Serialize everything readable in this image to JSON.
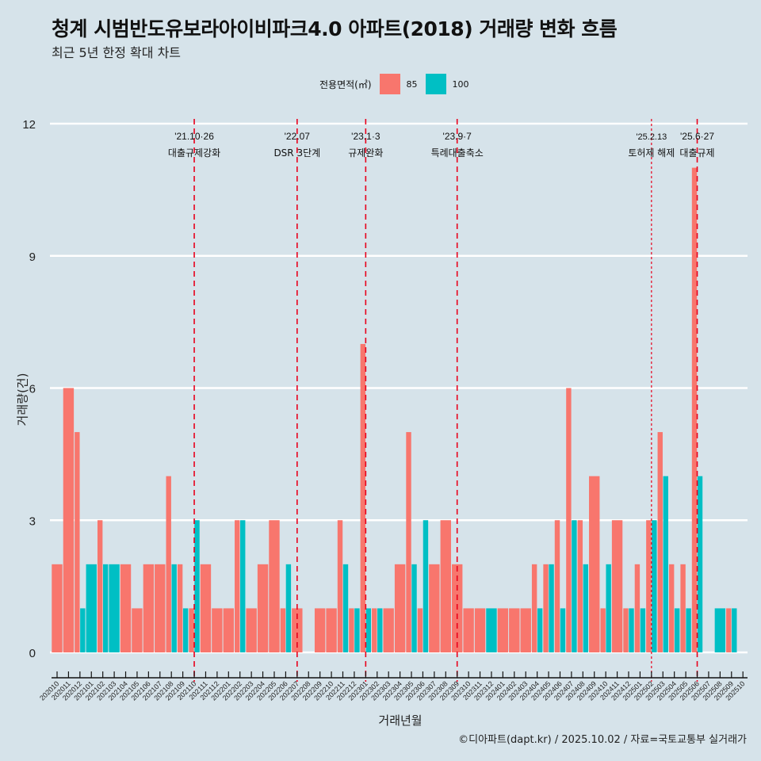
{
  "chart_data": {
    "type": "bar",
    "title": "청계 시범반도유보라아이비파크4.0 아파트(2018) 거래량 변화 흐름",
    "subtitle": "최근 5년 한정 확대 차트",
    "xlabel": "거래년월",
    "ylabel": "거래량(건)",
    "ylim": [
      0,
      12
    ],
    "yticks": [
      0,
      3,
      6,
      9,
      12
    ],
    "grid": true,
    "legend": {
      "title": "전용면적(㎡)",
      "position": "top"
    },
    "caption": "©디아파트(dapt.kr) / 2025.10.02 / 자료=국토교통부 실거래가",
    "categories": [
      "202010",
      "202011",
      "202012",
      "202101",
      "202102",
      "202103",
      "202104",
      "202105",
      "202106",
      "202107",
      "202108",
      "202109",
      "202110",
      "202111",
      "202112",
      "202201",
      "202202",
      "202203",
      "202204",
      "202205",
      "202206",
      "202207",
      "202208",
      "202209",
      "202210",
      "202211",
      "202212",
      "202301",
      "202302",
      "202303",
      "202304",
      "202305",
      "202306",
      "202307",
      "202308",
      "202309",
      "202310",
      "202311",
      "202312",
      "202401",
      "202402",
      "202403",
      "202404",
      "202405",
      "202406",
      "202407",
      "202408",
      "202409",
      "202410",
      "202411",
      "202412",
      "202501",
      "202502",
      "202503",
      "202504",
      "202505",
      "202506",
      "202507",
      "202508",
      "202509",
      "202510"
    ],
    "series": [
      {
        "name": "85",
        "color": "#f8766d",
        "values": [
          2,
          6,
          5,
          0,
          3,
          0,
          2,
          1,
          2,
          2,
          4,
          2,
          1,
          2,
          1,
          1,
          3,
          1,
          2,
          3,
          1,
          1,
          0,
          1,
          1,
          3,
          1,
          7,
          1,
          1,
          2,
          5,
          1,
          2,
          3,
          2,
          1,
          1,
          0,
          1,
          1,
          1,
          2,
          2,
          3,
          6,
          3,
          4,
          1,
          3,
          1,
          2,
          3,
          5,
          2,
          2,
          11,
          0,
          0,
          1,
          0
        ]
      },
      {
        "name": "100",
        "color": "#00bfc4",
        "values": [
          0,
          0,
          1,
          2,
          2,
          2,
          0,
          0,
          0,
          0,
          2,
          1,
          3,
          0,
          0,
          0,
          3,
          0,
          0,
          0,
          2,
          0,
          0,
          0,
          0,
          2,
          1,
          1,
          1,
          0,
          0,
          2,
          3,
          0,
          0,
          0,
          0,
          0,
          1,
          0,
          0,
          0,
          1,
          2,
          1,
          3,
          2,
          0,
          2,
          0,
          1,
          1,
          3,
          4,
          1,
          1,
          4,
          0,
          1,
          1,
          0
        ]
      }
    ],
    "events": [
      {
        "category": "202110",
        "date": "'21.10·26",
        "label": "대출규제강화",
        "style": "dashed"
      },
      {
        "category": "202207",
        "date": "'22.07",
        "label": "DSR 3단계",
        "style": "dashed"
      },
      {
        "category": "202301",
        "date": "'23.1·3",
        "label": "규제완화",
        "style": "dashed"
      },
      {
        "category": "202309",
        "date": "'23.9·7",
        "label": "특례대출축소",
        "style": "dashed"
      },
      {
        "category": "202502",
        "date": "'25.2.13",
        "label": "토허제 해제",
        "style": "dotted"
      },
      {
        "category": "202506",
        "date": "'25.6·27",
        "label": "대출규제",
        "style": "dashed"
      }
    ]
  }
}
